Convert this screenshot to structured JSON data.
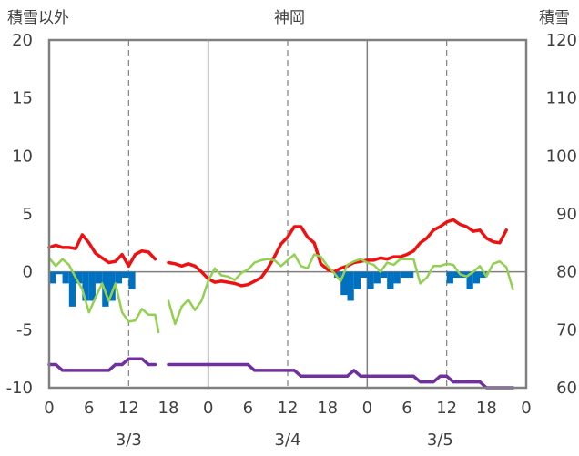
{
  "chart_data": {
    "type": "line",
    "title": "神岡",
    "left_axis_label": "積雪以外",
    "right_axis_label": "積雪",
    "left_axis": {
      "ylim": [
        -10,
        20
      ],
      "ticks": [
        20,
        15,
        10,
        5,
        0,
        -5,
        -10
      ]
    },
    "right_axis": {
      "ylim": [
        60,
        120
      ],
      "ticks": [
        120,
        110,
        100,
        90,
        80,
        70,
        60
      ]
    },
    "x_range_hours": [
      0,
      72
    ],
    "x_ticks": [
      {
        "h": 0,
        "label": "0"
      },
      {
        "h": 6,
        "label": "6"
      },
      {
        "h": 12,
        "label": "12"
      },
      {
        "h": 18,
        "label": "18"
      },
      {
        "h": 24,
        "label": "0"
      },
      {
        "h": 30,
        "label": "6"
      },
      {
        "h": 36,
        "label": "12"
      },
      {
        "h": 42,
        "label": "18"
      },
      {
        "h": 48,
        "label": "0"
      },
      {
        "h": 54,
        "label": "6"
      },
      {
        "h": 60,
        "label": "12"
      },
      {
        "h": 66,
        "label": "18"
      },
      {
        "h": 72,
        "label": "0"
      }
    ],
    "date_labels": [
      {
        "h": 12,
        "label": "3/3"
      },
      {
        "h": 36,
        "label": "3/4"
      },
      {
        "h": 59,
        "label": "3/5"
      }
    ],
    "grid": {
      "solid_hours": [
        24,
        48
      ],
      "dashed_hours": [
        12,
        36,
        60
      ]
    },
    "colors": {
      "temperature": "#ee1111",
      "green_line": "#92d050",
      "bars": "#0070c0",
      "snow_depth": "#7030a0",
      "axis": "#808080",
      "grid": "#808080"
    },
    "series": [
      {
        "kind": "line",
        "axis": "left",
        "color_key": "temperature",
        "points": [
          [
            0,
            2.1
          ],
          [
            1,
            2.3
          ],
          [
            2,
            2.1
          ],
          [
            3,
            2.1
          ],
          [
            4,
            2.0
          ],
          [
            5,
            3.2
          ],
          [
            6,
            2.5
          ],
          [
            7,
            1.6
          ],
          [
            8,
            1.2
          ],
          [
            9,
            0.8
          ],
          [
            10,
            0.9
          ],
          [
            11,
            1.5
          ],
          [
            12,
            0.5
          ],
          [
            13,
            1.5
          ],
          [
            14,
            1.8
          ],
          [
            15,
            1.7
          ],
          [
            16,
            1.1
          ],
          null,
          [
            18,
            0.8
          ],
          [
            19,
            0.7
          ],
          [
            20,
            0.5
          ],
          [
            21,
            0.7
          ],
          [
            22,
            0.5
          ],
          [
            23,
            0.0
          ],
          [
            24,
            -0.6
          ],
          [
            25,
            -0.9
          ],
          [
            26,
            -0.8
          ],
          [
            27,
            -0.9
          ],
          [
            28,
            -1.0
          ],
          [
            29,
            -1.2
          ],
          [
            30,
            -1.1
          ],
          [
            31,
            -0.8
          ],
          [
            32,
            -0.5
          ],
          [
            33,
            0.3
          ],
          [
            34,
            1.3
          ],
          [
            35,
            2.4
          ],
          [
            36,
            3.0
          ],
          [
            37,
            3.9
          ],
          [
            38,
            3.9
          ],
          [
            39,
            3.0
          ],
          [
            40,
            2.5
          ],
          [
            41,
            0.7
          ],
          [
            42,
            0.2
          ],
          [
            43,
            0.0
          ],
          [
            44,
            0.3
          ],
          [
            45,
            0.5
          ],
          [
            46,
            0.8
          ],
          [
            47,
            0.9
          ],
          [
            48,
            1.0
          ],
          [
            49,
            1.0
          ],
          [
            50,
            1.2
          ],
          [
            51,
            1.1
          ],
          [
            52,
            1.3
          ],
          [
            53,
            1.3
          ],
          [
            54,
            1.5
          ],
          [
            55,
            1.8
          ],
          [
            56,
            2.5
          ],
          [
            57,
            2.9
          ],
          [
            58,
            3.6
          ],
          [
            59,
            3.9
          ],
          [
            60,
            4.3
          ],
          [
            61,
            4.5
          ],
          [
            62,
            4.1
          ],
          [
            63,
            3.9
          ],
          [
            64,
            3.5
          ],
          [
            65,
            3.6
          ],
          [
            66,
            2.9
          ],
          [
            67,
            2.6
          ],
          [
            68,
            2.5
          ],
          [
            69,
            3.6
          ]
        ]
      },
      {
        "kind": "line",
        "axis": "left",
        "color_key": "green_line",
        "points": [
          [
            0,
            1.2
          ],
          [
            1,
            0.5
          ],
          [
            2,
            1.1
          ],
          [
            3,
            0.6
          ],
          [
            4,
            -0.5
          ],
          [
            5,
            -1.5
          ],
          [
            6,
            -3.5
          ],
          [
            7,
            -2.2
          ],
          [
            8,
            -1.0
          ],
          [
            9,
            -2.5
          ],
          [
            10,
            -1.0
          ],
          [
            11,
            -3.5
          ],
          [
            12,
            -4.3
          ],
          [
            13,
            -4.2
          ],
          [
            14,
            -3.2
          ],
          [
            15,
            -3.7
          ],
          [
            16,
            -3.7
          ],
          [
            16.5,
            -5.2
          ],
          null,
          [
            18,
            -2.5
          ],
          [
            19,
            -4.5
          ],
          [
            20,
            -3.0
          ],
          [
            21,
            -2.4
          ],
          [
            22,
            -3.3
          ],
          [
            23,
            -2.5
          ],
          [
            24,
            -0.8
          ],
          [
            25,
            0.3
          ],
          [
            26,
            -0.3
          ],
          [
            27,
            -0.4
          ],
          [
            28,
            -0.7
          ],
          [
            29,
            -0.1
          ],
          [
            30,
            0.2
          ],
          [
            31,
            0.8
          ],
          [
            32,
            1.0
          ],
          [
            33,
            1.1
          ],
          [
            34,
            1.0
          ],
          [
            35,
            0.5
          ],
          [
            36,
            1.0
          ],
          [
            37,
            1.5
          ],
          [
            38,
            0.5
          ],
          [
            39,
            0.3
          ],
          [
            40,
            1.5
          ],
          [
            41,
            1.3
          ],
          [
            42,
            0.5
          ],
          [
            43,
            -0.1
          ],
          [
            44,
            -0.8
          ],
          [
            45,
            0.6
          ],
          [
            46,
            0.9
          ],
          [
            47,
            1.1
          ],
          [
            48,
            0.8
          ],
          [
            49,
            0.6
          ],
          [
            50,
            0.0
          ],
          [
            51,
            0.8
          ],
          [
            52,
            0.6
          ],
          [
            53,
            1.1
          ],
          [
            54,
            1.1
          ],
          [
            55,
            1.1
          ],
          [
            56,
            -1.0
          ],
          [
            57,
            -0.5
          ],
          [
            58,
            0.5
          ],
          [
            59,
            0.5
          ],
          [
            60,
            0.7
          ],
          [
            61,
            0.6
          ],
          [
            62,
            -0.2
          ],
          [
            63,
            -0.4
          ],
          [
            64,
            0.0
          ],
          [
            65,
            0.5
          ],
          [
            66,
            -0.4
          ],
          [
            67,
            0.7
          ],
          [
            68,
            0.9
          ],
          [
            69,
            0.4
          ],
          [
            70,
            -1.5
          ]
        ]
      },
      {
        "kind": "bar",
        "axis": "left",
        "color_key": "bars",
        "points": [
          [
            0,
            -1.0
          ],
          [
            1,
            -0.2
          ],
          [
            2,
            -1.0
          ],
          [
            3,
            -3.0
          ],
          [
            4,
            -1.0
          ],
          [
            5,
            -2.5
          ],
          [
            6,
            -2.5
          ],
          [
            7,
            -1.0
          ],
          [
            8,
            -3.0
          ],
          [
            9,
            -2.5
          ],
          [
            10,
            -1.0
          ],
          [
            11,
            -0.5
          ],
          [
            12,
            -1.5
          ],
          [
            43,
            -0.5
          ],
          [
            44,
            -2.0
          ],
          [
            45,
            -2.5
          ],
          [
            46,
            -1.5
          ],
          [
            47,
            -0.5
          ],
          [
            48,
            -1.5
          ],
          [
            49,
            -1.0
          ],
          [
            50,
            -0.5
          ],
          [
            51,
            -1.5
          ],
          [
            52,
            -1.0
          ],
          [
            53,
            -0.5
          ],
          [
            54,
            -0.5
          ],
          [
            60,
            -1.0
          ],
          [
            61,
            -0.5
          ],
          [
            62,
            -0.5
          ],
          [
            63,
            -1.5
          ],
          [
            64,
            -1.0
          ],
          [
            65,
            -0.5
          ]
        ]
      },
      {
        "kind": "line",
        "axis": "right",
        "color_key": "snow_depth",
        "points": [
          [
            0,
            64
          ],
          [
            1,
            64
          ],
          [
            2,
            63
          ],
          [
            3,
            63
          ],
          [
            4,
            63
          ],
          [
            5,
            63
          ],
          [
            6,
            63
          ],
          [
            7,
            63
          ],
          [
            8,
            63
          ],
          [
            9,
            63
          ],
          [
            10,
            64
          ],
          [
            11,
            64
          ],
          [
            12,
            65
          ],
          [
            13,
            65
          ],
          [
            14,
            65
          ],
          [
            15,
            64
          ],
          [
            16,
            64
          ],
          null,
          [
            18,
            64
          ],
          [
            19,
            64
          ],
          [
            20,
            64
          ],
          [
            21,
            64
          ],
          [
            22,
            64
          ],
          [
            23,
            64
          ],
          [
            24,
            64
          ],
          [
            25,
            64
          ],
          [
            26,
            64
          ],
          [
            27,
            64
          ],
          [
            28,
            64
          ],
          [
            29,
            64
          ],
          [
            30,
            64
          ],
          [
            31,
            63
          ],
          [
            32,
            63
          ],
          [
            33,
            63
          ],
          [
            34,
            63
          ],
          [
            35,
            63
          ],
          [
            36,
            63
          ],
          [
            37,
            63
          ],
          [
            38,
            62
          ],
          [
            39,
            62
          ],
          [
            40,
            62
          ],
          [
            41,
            62
          ],
          [
            42,
            62
          ],
          [
            43,
            62
          ],
          [
            44,
            62
          ],
          [
            45,
            62
          ],
          [
            46,
            63
          ],
          [
            47,
            62
          ],
          [
            48,
            62
          ],
          [
            49,
            62
          ],
          [
            50,
            62
          ],
          [
            51,
            62
          ],
          [
            52,
            62
          ],
          [
            53,
            62
          ],
          [
            54,
            62
          ],
          [
            55,
            62
          ],
          [
            56,
            61
          ],
          [
            57,
            61
          ],
          [
            58,
            61
          ],
          [
            59,
            62
          ],
          [
            60,
            62
          ],
          [
            61,
            61
          ],
          [
            62,
            61
          ],
          [
            63,
            61
          ],
          [
            64,
            61
          ],
          [
            65,
            61
          ],
          [
            66,
            60
          ],
          [
            67,
            60
          ],
          [
            68,
            60
          ],
          [
            69,
            60
          ],
          [
            70,
            60
          ]
        ]
      }
    ]
  }
}
